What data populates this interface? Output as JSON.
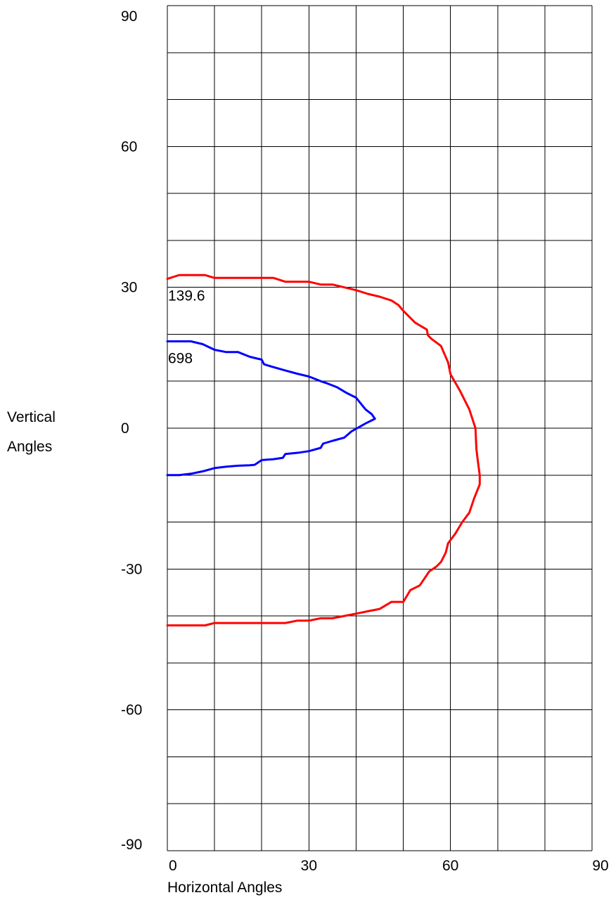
{
  "chart_data": {
    "type": "line",
    "title": "",
    "xlabel": "Horizontal Angles",
    "ylabel": [
      "Vertical",
      "Angles"
    ],
    "xlim": [
      0,
      90
    ],
    "ylim": [
      -90,
      90
    ],
    "x_tick_labels": [
      "0",
      "30",
      "60",
      "90"
    ],
    "y_tick_labels": [
      "90",
      "60",
      "30",
      "0",
      "-30",
      "-60",
      "-90"
    ],
    "x_ticks": [
      0,
      30,
      60,
      90
    ],
    "y_ticks": [
      90,
      60,
      30,
      0,
      -30,
      -60,
      -90
    ],
    "grid_step_x": 10,
    "grid_step_y": 10,
    "grid": true,
    "legend": "none",
    "series": [
      {
        "label": "139.6",
        "color": "#ff0000",
        "points": [
          [
            0,
            31.8
          ],
          [
            2.5,
            32.6
          ],
          [
            8,
            32.6
          ],
          [
            10,
            32.0
          ],
          [
            15,
            32.0
          ],
          [
            20,
            32.0
          ],
          [
            22.5,
            32.0
          ],
          [
            25,
            31.2
          ],
          [
            30,
            31.2
          ],
          [
            32.5,
            30.6
          ],
          [
            35,
            30.6
          ],
          [
            37.5,
            30.0
          ],
          [
            40,
            29.4
          ],
          [
            42.5,
            28.6
          ],
          [
            45,
            28.0
          ],
          [
            47.5,
            27.2
          ],
          [
            49,
            26.2
          ],
          [
            50,
            25.0
          ],
          [
            52.5,
            22.5
          ],
          [
            55,
            21.0
          ],
          [
            55.2,
            19.8
          ],
          [
            56,
            19.0
          ],
          [
            58,
            17.5
          ],
          [
            59.5,
            14.0
          ],
          [
            60,
            11.5
          ],
          [
            62,
            8.0
          ],
          [
            64,
            4.0
          ],
          [
            65.3,
            0.0
          ],
          [
            65.5,
            -4.5
          ],
          [
            65.8,
            -7.0
          ],
          [
            66.2,
            -10.0
          ],
          [
            66.2,
            -12.0
          ],
          [
            65,
            -15.0
          ],
          [
            64,
            -18.0
          ],
          [
            62.5,
            -20.0
          ],
          [
            61,
            -22.5
          ],
          [
            59.5,
            -24.5
          ],
          [
            59,
            -26.5
          ],
          [
            58,
            -28.5
          ],
          [
            57,
            -29.5
          ],
          [
            55.5,
            -30.5
          ],
          [
            54.5,
            -32.0
          ],
          [
            53.5,
            -33.5
          ],
          [
            51.5,
            -34.5
          ],
          [
            50,
            -37.0
          ],
          [
            47.5,
            -37.0
          ],
          [
            45,
            -38.5
          ],
          [
            42.5,
            -39.0
          ],
          [
            41.5,
            -39.2
          ],
          [
            40,
            -39.5
          ],
          [
            37.5,
            -40.0
          ],
          [
            35,
            -40.5
          ],
          [
            32.5,
            -40.5
          ],
          [
            30,
            -41.0
          ],
          [
            27.5,
            -41.0
          ],
          [
            25,
            -41.5
          ],
          [
            22.5,
            -41.5
          ],
          [
            20,
            -41.5
          ],
          [
            15,
            -41.5
          ],
          [
            10,
            -41.5
          ],
          [
            8,
            -42.0
          ],
          [
            5,
            -42.0
          ],
          [
            0,
            -42.0
          ]
        ]
      },
      {
        "label": "698",
        "color": "#0000ff",
        "points": [
          [
            0,
            18.5
          ],
          [
            5,
            18.5
          ],
          [
            7.5,
            17.9
          ],
          [
            10,
            16.7
          ],
          [
            12.5,
            16.2
          ],
          [
            15,
            16.2
          ],
          [
            17.5,
            15.2
          ],
          [
            20,
            14.6
          ],
          [
            20.5,
            13.6
          ],
          [
            22.5,
            13.0
          ],
          [
            25,
            12.3
          ],
          [
            27.5,
            11.6
          ],
          [
            30,
            11.0
          ],
          [
            32.5,
            10.0
          ],
          [
            34,
            9.5
          ],
          [
            36,
            8.7
          ],
          [
            38,
            7.5
          ],
          [
            40,
            6.5
          ],
          [
            42,
            4.0
          ],
          [
            43.3,
            3.0
          ],
          [
            44,
            2.0
          ],
          [
            42,
            1.0
          ],
          [
            39,
            -0.7
          ],
          [
            37.5,
            -2.0
          ],
          [
            35,
            -2.7
          ],
          [
            33,
            -3.3
          ],
          [
            32.5,
            -4.2
          ],
          [
            30,
            -4.9
          ],
          [
            28,
            -5.2
          ],
          [
            25,
            -5.5
          ],
          [
            24.5,
            -6.3
          ],
          [
            22.5,
            -6.6
          ],
          [
            20,
            -6.8
          ],
          [
            18.5,
            -7.8
          ],
          [
            17.5,
            -7.9
          ],
          [
            15,
            -8.0
          ],
          [
            12.5,
            -8.2
          ],
          [
            10,
            -8.5
          ],
          [
            7.5,
            -9.2
          ],
          [
            5,
            -9.7
          ],
          [
            2.5,
            -10.0
          ],
          [
            0,
            -10.0
          ]
        ]
      }
    ]
  }
}
